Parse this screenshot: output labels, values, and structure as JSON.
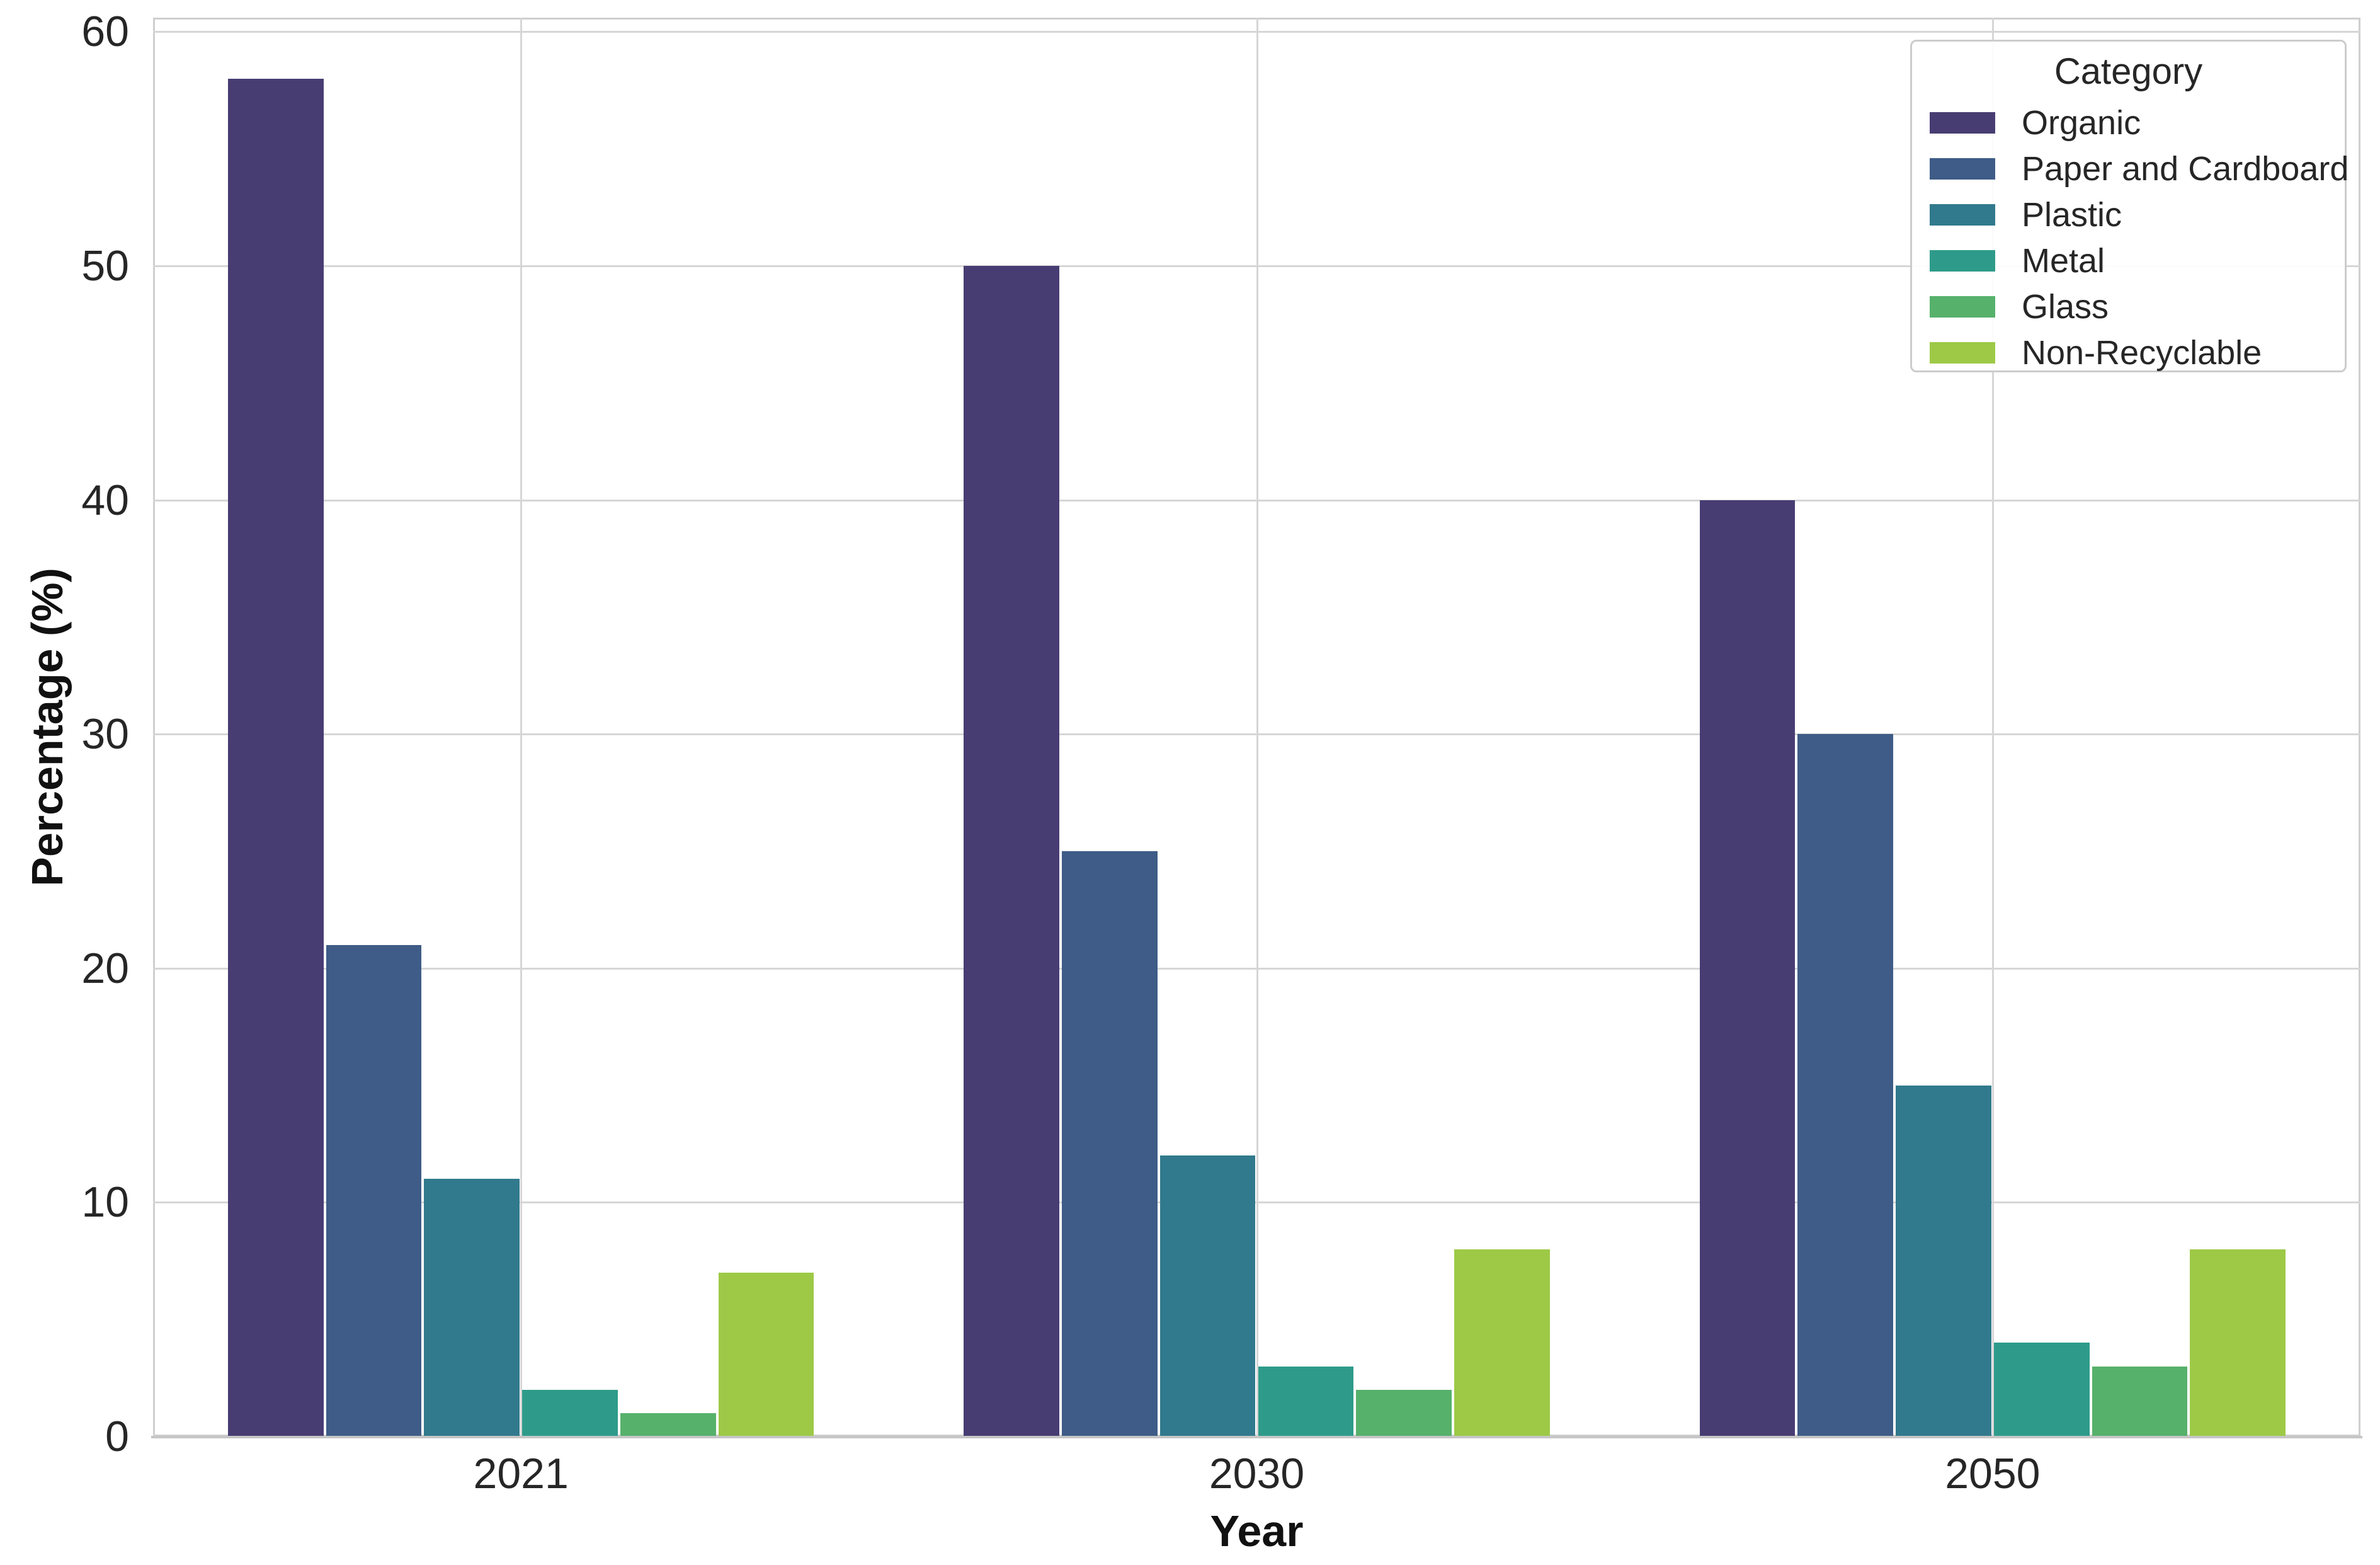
{
  "chart_data": {
    "type": "bar",
    "title": "",
    "xlabel": "Year",
    "ylabel": "Percentage (%)",
    "legend_title": "Category",
    "legend_position": "upper right",
    "grid": true,
    "background": "#ffffff",
    "grid_color": "#d6d6d6",
    "axis_text_color": "#262626",
    "categories": [
      "2021",
      "2030",
      "2050"
    ],
    "yticks": [
      0,
      10,
      20,
      30,
      40,
      50,
      60
    ],
    "ylim": [
      0,
      60.6
    ],
    "series": [
      {
        "name": "Organic",
        "color": "#483d73",
        "values": [
          58,
          50,
          40
        ]
      },
      {
        "name": "Paper and Cardboard",
        "color": "#3e5c87",
        "values": [
          21,
          25,
          30
        ]
      },
      {
        "name": "Plastic",
        "color": "#31798c",
        "values": [
          11,
          12,
          15
        ]
      },
      {
        "name": "Metal",
        "color": "#2e9b8a",
        "values": [
          2,
          3,
          4
        ]
      },
      {
        "name": "Glass",
        "color": "#56b16b",
        "values": [
          1,
          2,
          3
        ]
      },
      {
        "name": "Non-Recyclable",
        "color": "#9dc947",
        "values": [
          7,
          8,
          8
        ]
      }
    ]
  }
}
